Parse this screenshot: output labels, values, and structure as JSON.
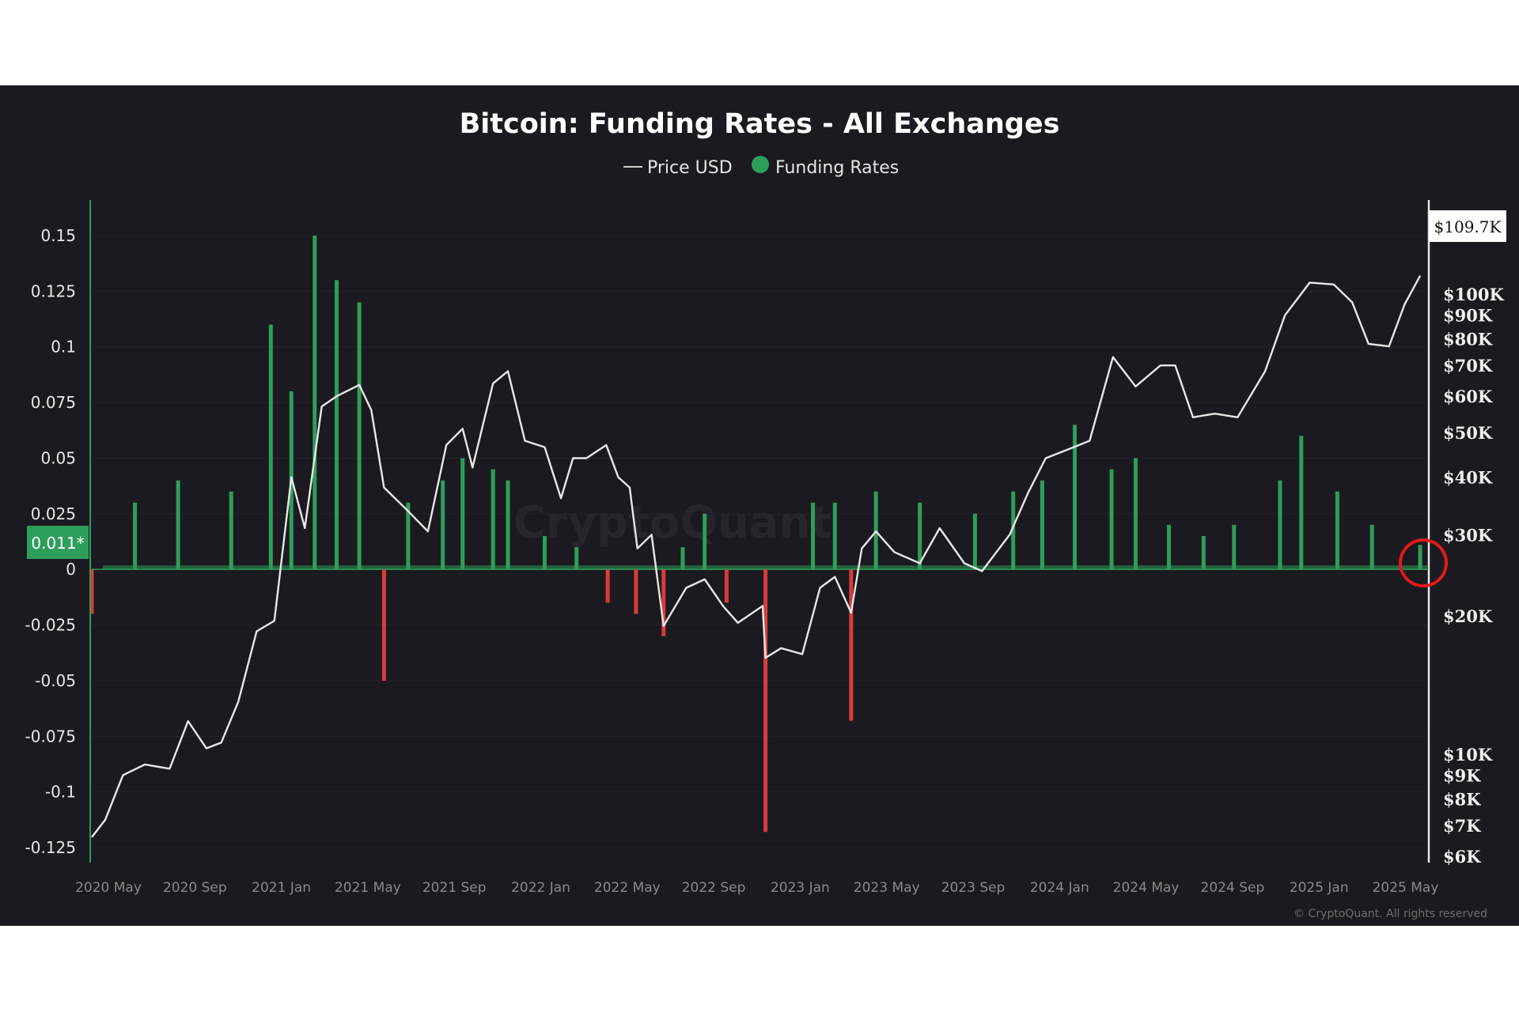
{
  "chart_data": {
    "type": "bar",
    "title": "Bitcoin: Funding Rates - All Exchanges",
    "legend": [
      "Price USD",
      "Funding Rates"
    ],
    "legend_position": "top-center",
    "x_ticks": [
      "2020 May",
      "2020 Sep",
      "2021 Jan",
      "2021 May",
      "2021 Sep",
      "2022 Jan",
      "2022 May",
      "2022 Sep",
      "2023 Jan",
      "2023 May",
      "2023 Sep",
      "2024 Jan",
      "2024 May",
      "2024 Sep",
      "2025 Jan",
      "2025 May"
    ],
    "y_left_ticks": [
      "0.15",
      "0.125",
      "0.1",
      "0.075",
      "0.05",
      "0.025",
      "0",
      "-0.025",
      "-0.05",
      "-0.075",
      "-0.1",
      "-0.125"
    ],
    "y_left_range": [
      -0.125,
      0.15
    ],
    "y_right_ticks": [
      "$100K",
      "$90K",
      "$80K",
      "$70K",
      "$60K",
      "$50K",
      "$40K",
      "$30K",
      "$20K",
      "$10K",
      "$9K",
      "$8K",
      "$7K",
      "$6K"
    ],
    "y_right_scale": "log",
    "y_right_range": [
      6000,
      110000
    ],
    "current_funding_label": "0.011*",
    "current_price_label": "$109.7K",
    "copyright": "© CryptoQuant. All rights reserved",
    "watermark": "CryptoQuant",
    "colors": {
      "background": "#1b1a20",
      "positive": "#2e9e5b",
      "negative": "#d83c3c",
      "price": "#e8e8e8",
      "highlight_circle": "#e01b1b"
    },
    "series": [
      {
        "name": "Price USD",
        "type": "line",
        "x": [
          "2020-04-01",
          "2020-04-20",
          "2020-05-15",
          "2020-06-15",
          "2020-07-20",
          "2020-08-15",
          "2020-09-10",
          "2020-10-01",
          "2020-10-25",
          "2020-11-20",
          "2020-12-15",
          "2021-01-08",
          "2021-01-27",
          "2021-02-20",
          "2021-03-13",
          "2021-04-14",
          "2021-05-01",
          "2021-05-19",
          "2021-06-20",
          "2021-07-20",
          "2021-08-15",
          "2021-09-07",
          "2021-09-21",
          "2021-10-20",
          "2021-11-10",
          "2021-12-04",
          "2022-01-01",
          "2022-01-24",
          "2022-02-10",
          "2022-03-01",
          "2022-03-29",
          "2022-04-15",
          "2022-05-01",
          "2022-05-12",
          "2022-06-01",
          "2022-06-18",
          "2022-07-20",
          "2022-08-15",
          "2022-09-10",
          "2022-10-01",
          "2022-11-05",
          "2022-11-09",
          "2022-12-01",
          "2022-12-31",
          "2023-01-25",
          "2023-02-15",
          "2023-03-10",
          "2023-03-25",
          "2023-04-14",
          "2023-05-10",
          "2023-06-15",
          "2023-07-13",
          "2023-08-17",
          "2023-09-11",
          "2023-10-20",
          "2023-11-15",
          "2023-12-10",
          "2024-01-11",
          "2024-02-10",
          "2024-03-14",
          "2024-04-15",
          "2024-05-20",
          "2024-06-10",
          "2024-07-05",
          "2024-08-05",
          "2024-09-06",
          "2024-10-15",
          "2024-11-12",
          "2024-12-17",
          "2025-01-20",
          "2025-02-15",
          "2025-03-10",
          "2025-04-08",
          "2025-04-30",
          "2025-05-22"
        ],
        "values": [
          6600,
          7200,
          9000,
          9500,
          9300,
          11800,
          10300,
          10600,
          13000,
          18500,
          19500,
          40000,
          31000,
          57000,
          60000,
          63500,
          56000,
          38000,
          34000,
          30500,
          47000,
          51000,
          42000,
          64000,
          68000,
          48000,
          46500,
          36000,
          44000,
          44000,
          47000,
          40000,
          38000,
          28000,
          30000,
          19000,
          23000,
          24000,
          21000,
          19300,
          21000,
          16200,
          17000,
          16500,
          23000,
          24300,
          20300,
          28000,
          30500,
          27500,
          26000,
          31000,
          26000,
          25000,
          30000,
          37000,
          44000,
          46000,
          48000,
          73000,
          63000,
          70000,
          70000,
          54000,
          55000,
          54000,
          68000,
          90000,
          106000,
          105000,
          96000,
          78000,
          77000,
          95000,
          109700
        ]
      },
      {
        "name": "Funding Rates",
        "type": "bar",
        "x": [
          "2020-04-01",
          "2020-06-01",
          "2020-08-01",
          "2020-10-15",
          "2020-12-10",
          "2021-01-08",
          "2021-02-10",
          "2021-03-13",
          "2021-04-14",
          "2021-05-19",
          "2021-06-22",
          "2021-08-10",
          "2021-09-07",
          "2021-10-20",
          "2021-11-10",
          "2022-01-01",
          "2022-02-15",
          "2022-03-31",
          "2022-05-10",
          "2022-06-18",
          "2022-07-15",
          "2022-08-15",
          "2022-09-15",
          "2022-11-09",
          "2023-01-15",
          "2023-02-15",
          "2023-03-10",
          "2023-04-14",
          "2023-06-15",
          "2023-09-01",
          "2023-10-25",
          "2023-12-05",
          "2024-01-20",
          "2024-03-12",
          "2024-04-15",
          "2024-06-01",
          "2024-07-20",
          "2024-09-01",
          "2024-11-05",
          "2024-12-05",
          "2025-01-25",
          "2025-03-15",
          "2025-05-22"
        ],
        "values": [
          -0.02,
          0.03,
          0.04,
          0.035,
          0.11,
          0.08,
          0.15,
          0.13,
          0.12,
          -0.05,
          0.03,
          0.04,
          0.05,
          0.045,
          0.04,
          0.015,
          0.01,
          -0.015,
          -0.02,
          -0.03,
          0.01,
          0.025,
          -0.015,
          -0.118,
          0.03,
          0.03,
          -0.068,
          0.035,
          0.03,
          0.025,
          0.035,
          0.04,
          0.065,
          0.045,
          0.05,
          0.02,
          0.015,
          0.02,
          0.04,
          0.06,
          0.035,
          0.02,
          0.011
        ]
      }
    ]
  }
}
